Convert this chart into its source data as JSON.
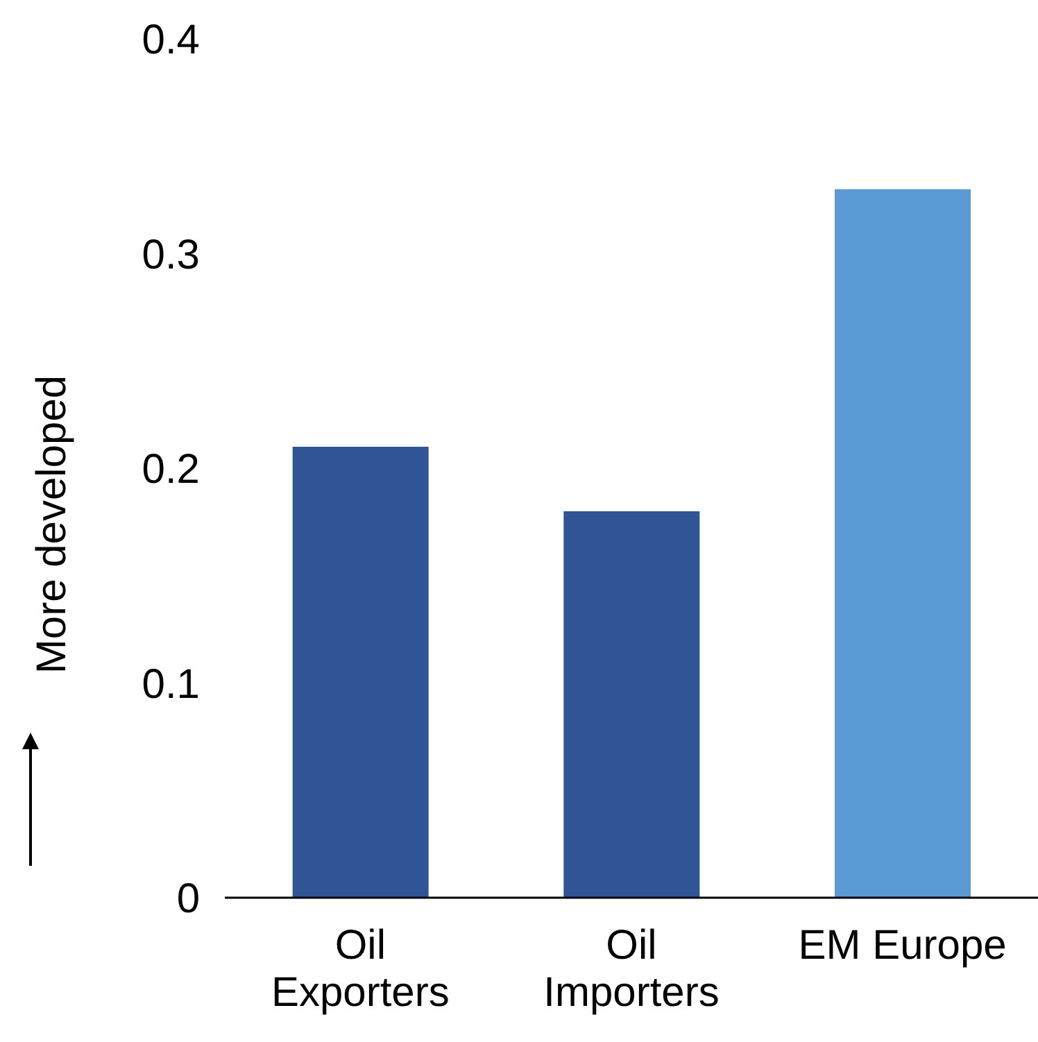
{
  "chart_data": {
    "type": "bar",
    "ylabel": "More developed",
    "categories": [
      "Oil Exporters",
      "Oil Importers",
      "EM Europe"
    ],
    "values": [
      0.21,
      0.18,
      0.33
    ],
    "colors": [
      "#2f5597",
      "#2f5597",
      "#5b9bd5"
    ],
    "ylim": [
      0,
      0.4
    ],
    "yticks": [
      0,
      0.1,
      0.2,
      0.3,
      0.4
    ],
    "grid": false,
    "legend": false
  }
}
